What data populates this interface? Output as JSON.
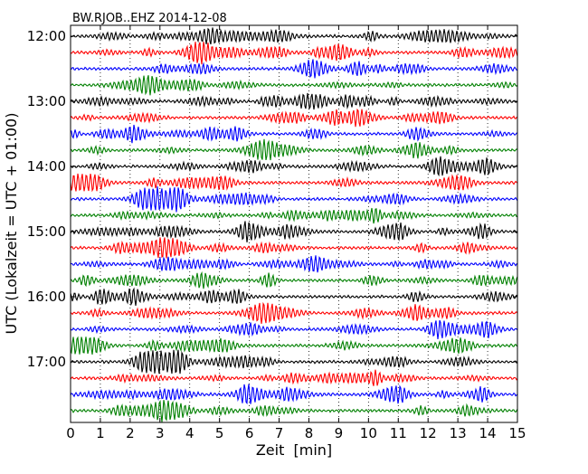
{
  "chart_data": {
    "type": "line",
    "title": "BW.RJOB..EHZ 2014-12-08",
    "xlabel": "Zeit  [min]",
    "ylabel": "UTC (Lokalzeit = UTC + 01:00)",
    "xlim": [
      0,
      15
    ],
    "x_ticks": [
      "0",
      "1",
      "2",
      "3",
      "4",
      "5",
      "6",
      "7",
      "8",
      "9",
      "10",
      "11",
      "12",
      "13",
      "14",
      "15"
    ],
    "y_tick_labels": [
      "12:00",
      "13:00",
      "14:00",
      "15:00",
      "16:00",
      "17:00"
    ],
    "y_tick_rows": [
      0,
      4,
      8,
      12,
      16,
      20
    ],
    "grid_x": true,
    "trace_colors": [
      "#000000",
      "#ff0000",
      "#0000ff",
      "#008000"
    ],
    "row_minutes": 15,
    "rows": [
      {
        "start": "12:00",
        "color": "#000000"
      },
      {
        "start": "12:15",
        "color": "#ff0000"
      },
      {
        "start": "12:30",
        "color": "#0000ff"
      },
      {
        "start": "12:45",
        "color": "#008000"
      },
      {
        "start": "13:00",
        "color": "#000000"
      },
      {
        "start": "13:15",
        "color": "#ff0000"
      },
      {
        "start": "13:30",
        "color": "#0000ff"
      },
      {
        "start": "13:45",
        "color": "#008000"
      },
      {
        "start": "14:00",
        "color": "#000000"
      },
      {
        "start": "14:15",
        "color": "#ff0000"
      },
      {
        "start": "14:30",
        "color": "#0000ff"
      },
      {
        "start": "14:45",
        "color": "#008000"
      },
      {
        "start": "15:00",
        "color": "#000000"
      },
      {
        "start": "15:15",
        "color": "#ff0000"
      },
      {
        "start": "15:30",
        "color": "#0000ff"
      },
      {
        "start": "15:45",
        "color": "#008000"
      },
      {
        "start": "16:00",
        "color": "#000000"
      },
      {
        "start": "16:15",
        "color": "#ff0000"
      },
      {
        "start": "16:30",
        "color": "#0000ff"
      },
      {
        "start": "16:45",
        "color": "#008000"
      },
      {
        "start": "17:00",
        "color": "#000000"
      },
      {
        "start": "17:15",
        "color": "#ff0000"
      },
      {
        "start": "17:30",
        "color": "#0000ff"
      },
      {
        "start": "17:45",
        "color": "#008000"
      }
    ]
  }
}
